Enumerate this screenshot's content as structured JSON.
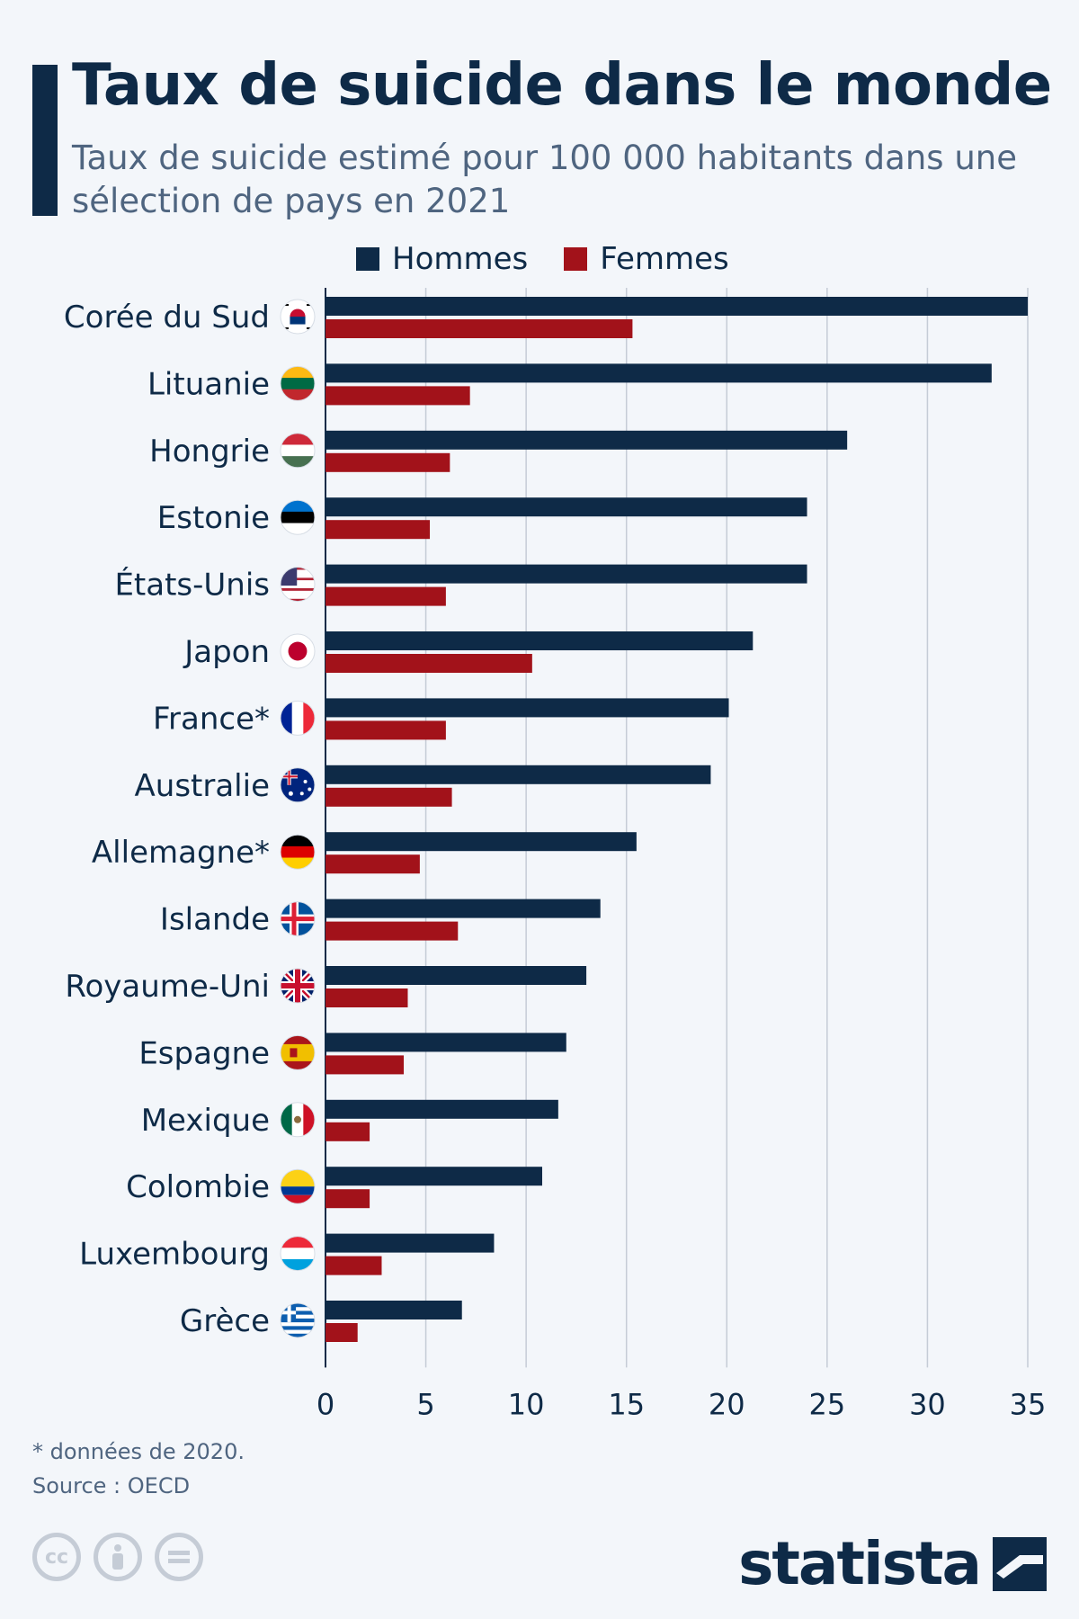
{
  "header": {
    "title": "Taux de suicide dans le monde",
    "subtitle": "Taux de suicide estimé pour 100 000 habitants dans une sélection de pays en 2021"
  },
  "colors": {
    "men": "#0e2a47",
    "women": "#a2121a",
    "grid": "#c5ccd6",
    "background": "#f3f6fa"
  },
  "chart_data": {
    "type": "bar",
    "orientation": "horizontal",
    "categories": [
      "Corée du Sud",
      "Lituanie",
      "Hongrie",
      "Estonie",
      "États-Unis",
      "Japon",
      "France*",
      "Australie",
      "Allemagne*",
      "Islande",
      "Royaume-Uni",
      "Espagne",
      "Mexique",
      "Colombie",
      "Luxembourg",
      "Grèce"
    ],
    "flags": [
      "south-korea-flag-icon",
      "lithuania-flag-icon",
      "hungary-flag-icon",
      "estonia-flag-icon",
      "usa-flag-icon",
      "japan-flag-icon",
      "france-flag-icon",
      "australia-flag-icon",
      "germany-flag-icon",
      "iceland-flag-icon",
      "uk-flag-icon",
      "spain-flag-icon",
      "mexico-flag-icon",
      "colombia-flag-icon",
      "luxembourg-flag-icon",
      "greece-flag-icon"
    ],
    "series": [
      {
        "name": "Hommes",
        "values": [
          35.0,
          33.2,
          26.0,
          24.0,
          24.0,
          21.3,
          20.1,
          19.2,
          15.5,
          13.7,
          13.0,
          12.0,
          11.6,
          10.8,
          8.4,
          6.8
        ]
      },
      {
        "name": "Femmes",
        "values": [
          15.3,
          7.2,
          6.2,
          5.2,
          6.0,
          10.3,
          6.0,
          6.3,
          4.7,
          6.6,
          4.1,
          3.9,
          2.2,
          2.2,
          2.8,
          1.6
        ]
      }
    ],
    "xlim": [
      0,
      35
    ],
    "xticks": [
      0,
      5,
      10,
      15,
      20,
      25,
      30,
      35
    ],
    "grid": true,
    "legend_position": "top"
  },
  "footer": {
    "footnote": "* données de 2020.",
    "source": "Source : OECD",
    "brand": "statista",
    "license_icons": [
      "cc-icon",
      "attribution-icon",
      "no-derivatives-icon"
    ]
  }
}
